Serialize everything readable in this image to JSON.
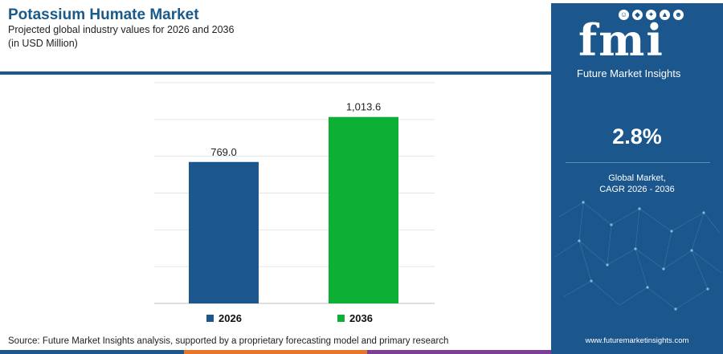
{
  "header": {
    "title": "Potassium Humate Market",
    "subtitle_line1": "Projected global industry values for 2026 and 2036",
    "subtitle_line2": "(in USD Million)"
  },
  "chart_data": {
    "type": "bar",
    "categories": [
      "2026",
      "2036"
    ],
    "values": [
      769.0,
      1013.6
    ],
    "value_labels": [
      "769.0",
      "1,013.6"
    ],
    "colors": [
      "#1b568c",
      "#0db034"
    ],
    "ylim": [
      0,
      1200
    ],
    "grid": true,
    "legend_placement": "bottom",
    "legend": [
      {
        "label": "2026",
        "color": "#1b568c"
      },
      {
        "label": "2036",
        "color": "#0db034"
      }
    ]
  },
  "source": "Source: Future Market Insights analysis, supported by a proprietary forecasting model and primary research",
  "footer_colors": [
    "#1b568c",
    "#e9742b",
    "#7b3f98"
  ],
  "side_panel": {
    "logo_mark": "fmi",
    "logo_text": "Future Market Insights",
    "cagr_value": "2.8%",
    "cagr_label_line1": "Global Market,",
    "cagr_label_line2": "CAGR 2026 - 2036",
    "website": "www.futuremarketinsights.com",
    "background": "#1b568c"
  }
}
